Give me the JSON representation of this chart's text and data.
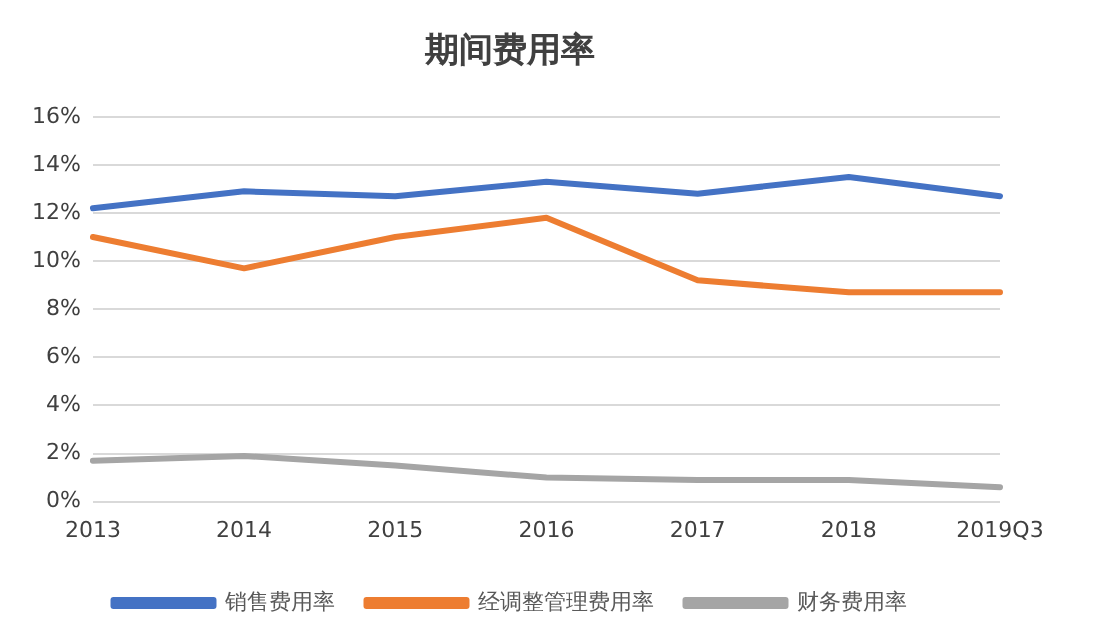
{
  "chart_data": {
    "type": "line",
    "title": "期间费用率",
    "categories": [
      "2013",
      "2014",
      "2015",
      "2016",
      "2017",
      "2018",
      "2019Q3"
    ],
    "series": [
      {
        "name": "销售费用率",
        "color": "#4472c4",
        "values": [
          12.2,
          12.9,
          12.7,
          13.3,
          12.8,
          13.5,
          12.7
        ]
      },
      {
        "name": "经调整管理费用率",
        "color": "#ed7d31",
        "values": [
          11.0,
          9.7,
          11.0,
          11.8,
          9.2,
          8.7,
          8.7
        ]
      },
      {
        "name": "财务费用率",
        "color": "#a5a5a5",
        "values": [
          1.7,
          1.9,
          1.5,
          1.0,
          0.9,
          0.9,
          0.6
        ]
      }
    ],
    "ylim": [
      0,
      16
    ],
    "yticks": [
      {
        "value": 0,
        "label": "0%"
      },
      {
        "value": 2,
        "label": "2%"
      },
      {
        "value": 4,
        "label": "4%"
      },
      {
        "value": 6,
        "label": "6%"
      },
      {
        "value": 8,
        "label": "8%"
      },
      {
        "value": 10,
        "label": "10%"
      },
      {
        "value": 12,
        "label": "12%"
      },
      {
        "value": 14,
        "label": "14%"
      },
      {
        "value": 16,
        "label": "16%"
      }
    ],
    "grid": "y",
    "legend": "bottom",
    "marker": "none",
    "line_style": "solid"
  }
}
